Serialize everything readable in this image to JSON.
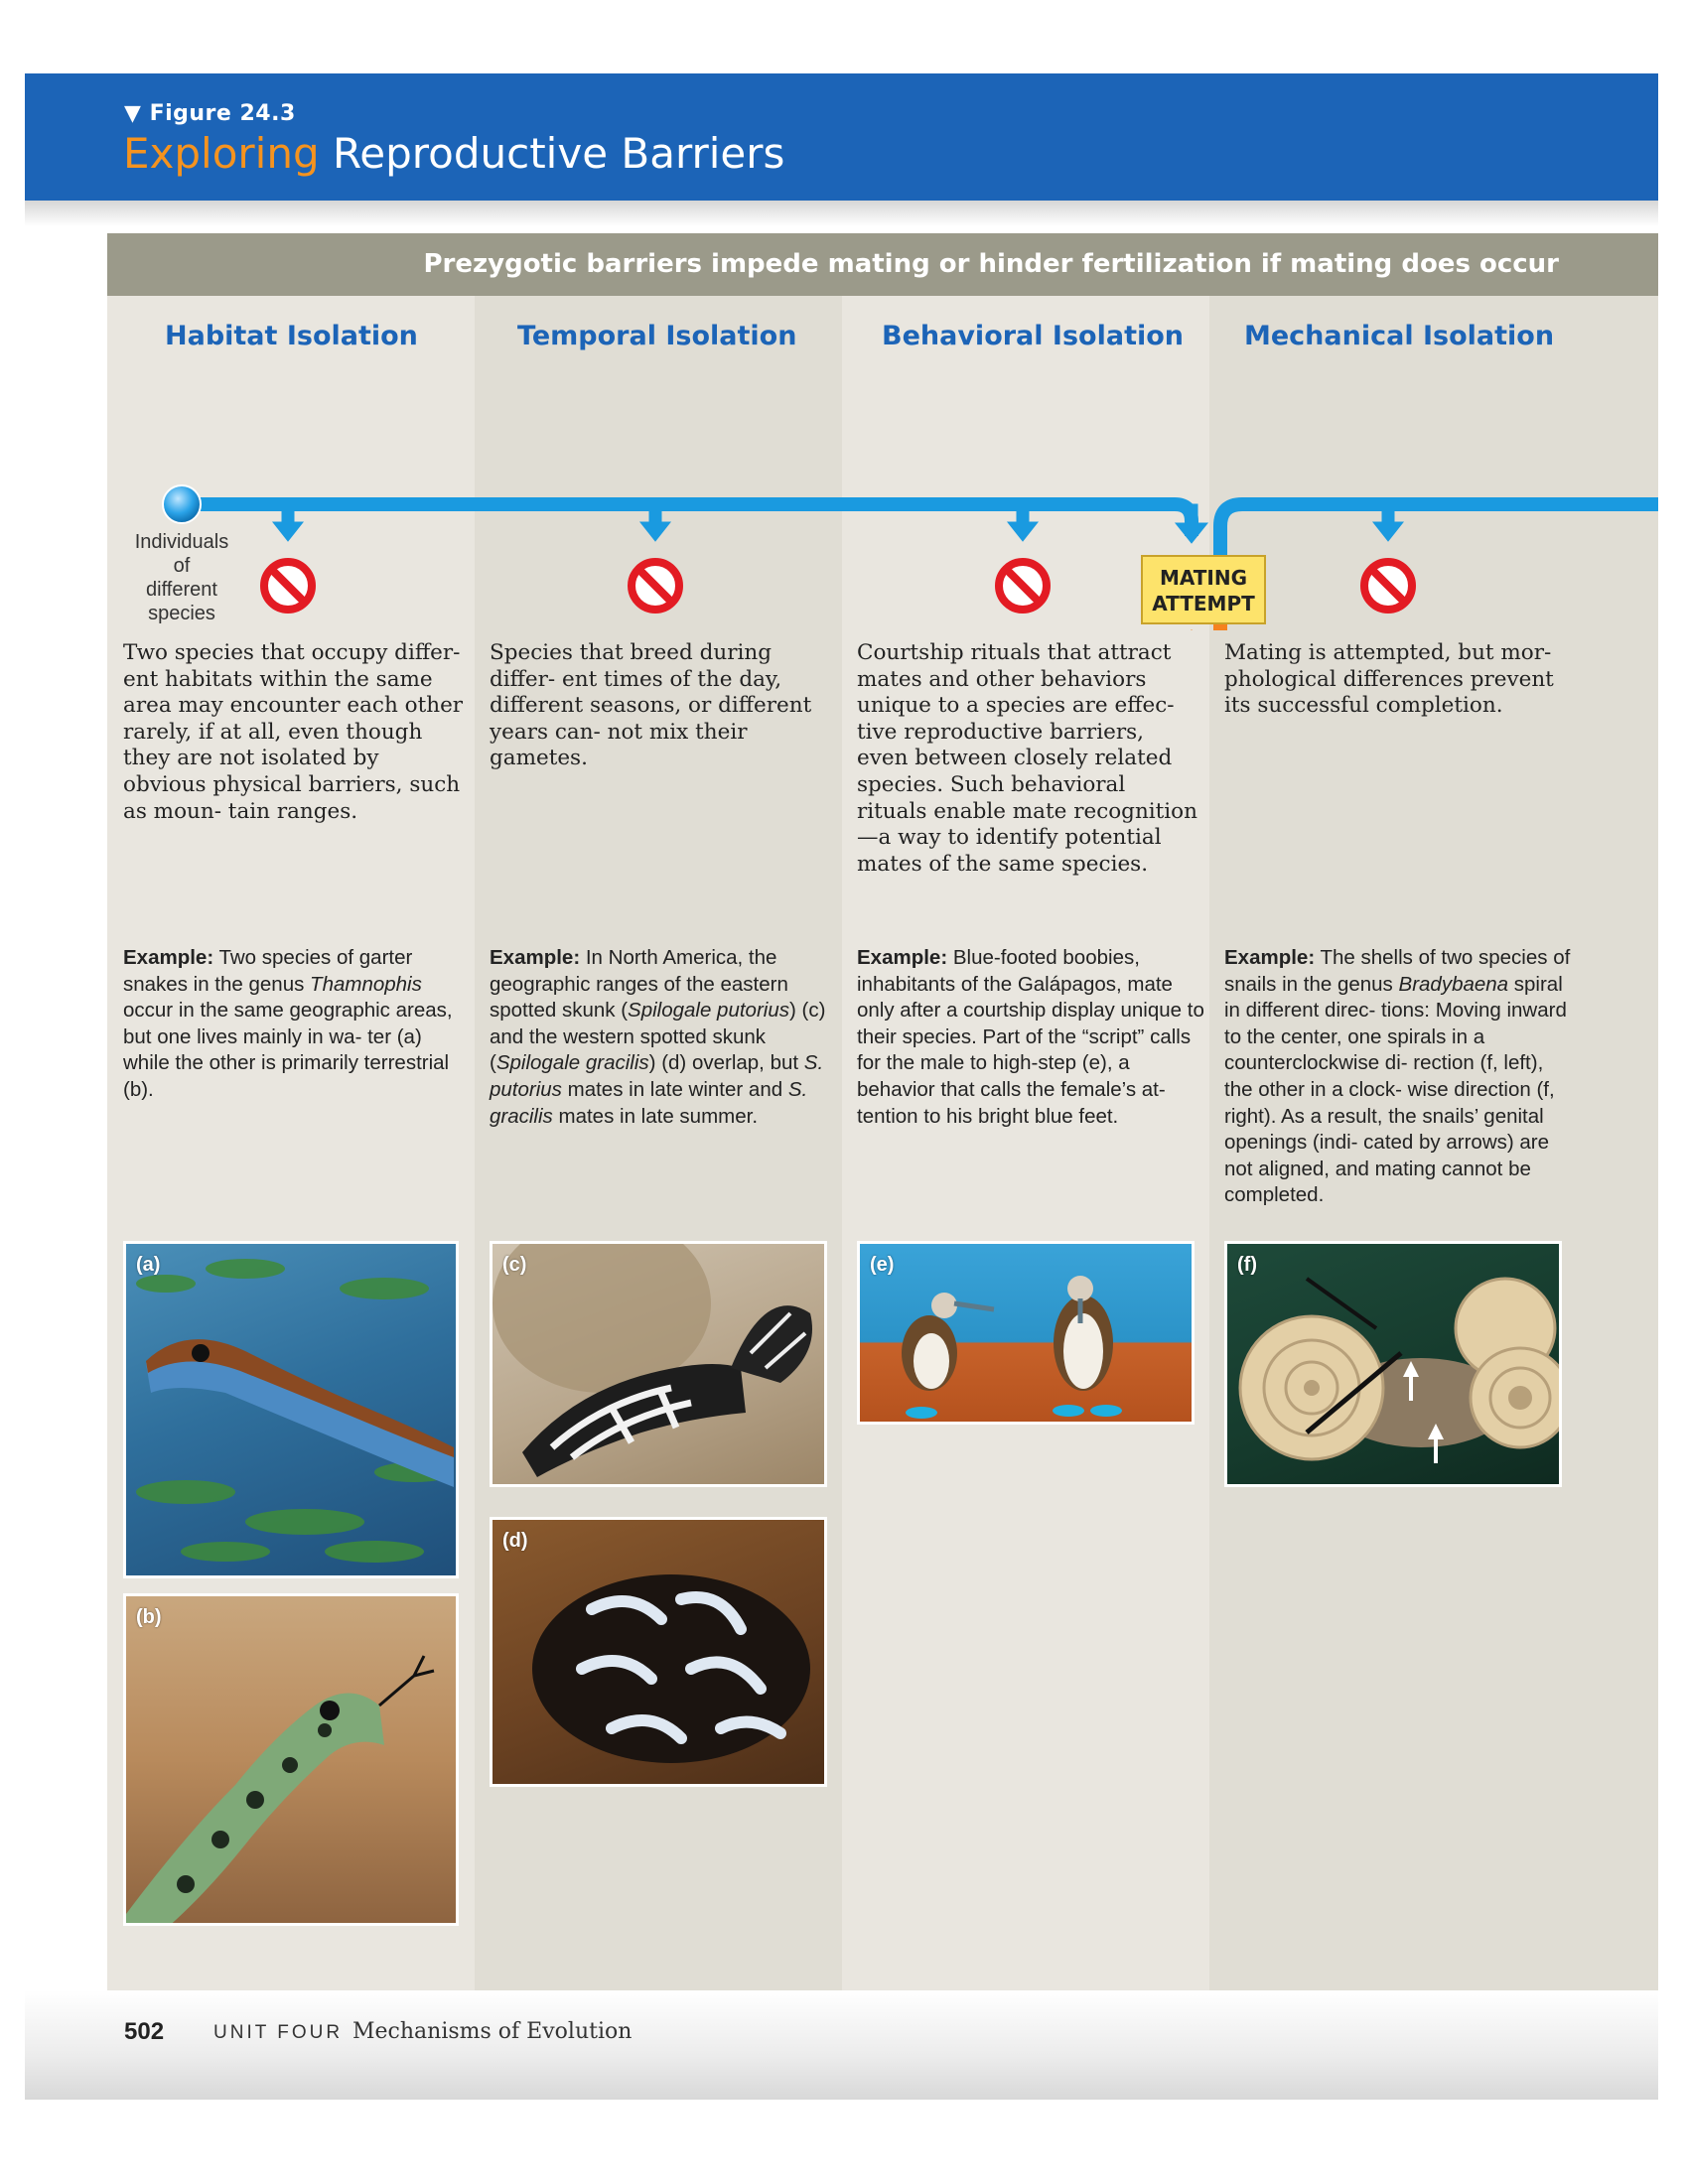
{
  "header": {
    "figure_label": "▼ Figure 24.3",
    "title_highlight": "Exploring",
    "title_rest": "Reproductive Barriers"
  },
  "banner": "Prezygotic barriers impede mating or hinder fertilization if mating does occur",
  "diagram": {
    "individuals_label": [
      "Individuals",
      "of",
      "different",
      "species"
    ],
    "mating_attempt": [
      "MATING",
      "ATTEMPT"
    ],
    "colors": {
      "blue": "#1a9ae0",
      "orange": "#f5821f",
      "stop_red": "#e31b23",
      "mating_box": "#fde36b"
    }
  },
  "columns": [
    {
      "heading": "Habitat Isolation",
      "description": "Two species that occupy differ- ent habitats within the same area may encounter each other rarely, if at all, even though they are not isolated by obvious physical barriers, such as moun- tain ranges.",
      "example_label": "Example:",
      "example_parts": [
        "Two species of garter snakes in the genus ",
        "Thamnophis",
        " occur in the same geographic areas, but one lives mainly in wa- ter (a) while the other is primarily terrestrial (b)."
      ],
      "photos": [
        "(a)",
        "(b)"
      ]
    },
    {
      "heading": "Temporal Isolation",
      "description": "Species that breed during differ- ent times of the day, different seasons, or different years can- not mix their gametes.",
      "example_label": "Example:",
      "example_parts": [
        "In North America, the geographic ranges of the eastern spotted skunk (",
        "Spilogale putorius",
        ") (c) and the western spotted skunk (",
        "Spilogale gracilis",
        ") (d) overlap, but ",
        "S. putorius",
        " mates in late winter and ",
        "S. gracilis",
        " mates in late summer."
      ],
      "photos": [
        "(c)",
        "(d)"
      ]
    },
    {
      "heading": "Behavioral Isolation",
      "description": "Courtship rituals that attract mates and other behaviors unique to a species are effec- tive reproductive barriers, even between closely related species. Such behavioral rituals enable mate recognition—a way to identify potential mates of the same species.",
      "example_label": "Example:",
      "example_parts": [
        "Blue-footed boobies, inhabitants of the Galápagos, mate only after a courtship display unique to their species. Part of the “script” calls for the male to high-step (e), a behavior that calls the female’s at- tention to his bright blue feet."
      ],
      "photos": [
        "(e)"
      ]
    },
    {
      "heading": "Mechanical Isolation",
      "description": "Mating is attempted, but mor- phological differences prevent its successful completion.",
      "example_label": "Example:",
      "example_parts": [
        "The shells of two species of snails in the genus ",
        "Bradybaena",
        " spiral in different direc- tions: Moving inward to the center, one spirals in a counterclockwise di- rection (f, left), the other in a clock- wise direction (f, right). As a result, the snails’ genital openings (indi- cated by arrows) are not aligned, and mating cannot be completed."
      ],
      "photos": [
        "(f)"
      ]
    }
  ],
  "footer": {
    "page_number": "502",
    "unit": "UNIT FOUR",
    "chapter": "Mechanisms of Evolution"
  }
}
